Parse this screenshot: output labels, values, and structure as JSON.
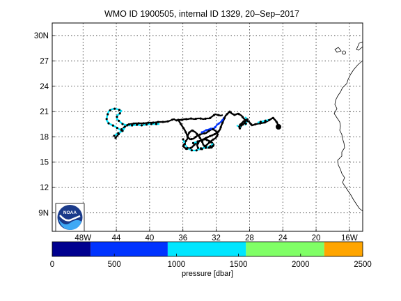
{
  "title": "WMO ID 1900505, internal ID 1329, 20–Sep–2017",
  "map": {
    "lat_labels": [
      "30N",
      "27",
      "24",
      "21",
      "18",
      "15",
      "12",
      "9N"
    ],
    "lat_values": [
      30,
      27,
      24,
      21,
      18,
      15,
      12,
      9
    ],
    "lon_labels": [
      "48W",
      "44",
      "40",
      "36",
      "32",
      "28",
      "24",
      "20",
      "16W"
    ],
    "lon_values": [
      -48,
      -44,
      -40,
      -36,
      -32,
      -28,
      -24,
      -20,
      -16
    ],
    "lon_range": [
      -51.7,
      -14.4
    ],
    "lat_range": [
      6.8,
      31.5
    ],
    "track_color_shallow": "#00e6ff",
    "track_color_deep": "#000000",
    "track_color_mid": "#0033ff"
  },
  "colorbar": {
    "tick_labels": [
      "0",
      "500",
      "1000",
      "1500",
      "2000",
      "2500"
    ],
    "tick_values": [
      0,
      500,
      1000,
      1500,
      2000,
      2500
    ],
    "segments": [
      {
        "from": 0,
        "to": 310,
        "color": "#00008f"
      },
      {
        "from": 310,
        "to": 930,
        "color": "#0033ff"
      },
      {
        "from": 930,
        "to": 1560,
        "color": "#00e6ff"
      },
      {
        "from": 1560,
        "to": 2190,
        "color": "#80ff66"
      },
      {
        "from": 2190,
        "to": 2500,
        "color": "#ffa500"
      }
    ],
    "label": "pressure [dbar]"
  },
  "logo": {
    "text": "NOAA",
    "colors": [
      "#1a3a8a",
      "#3fa9f5"
    ]
  }
}
